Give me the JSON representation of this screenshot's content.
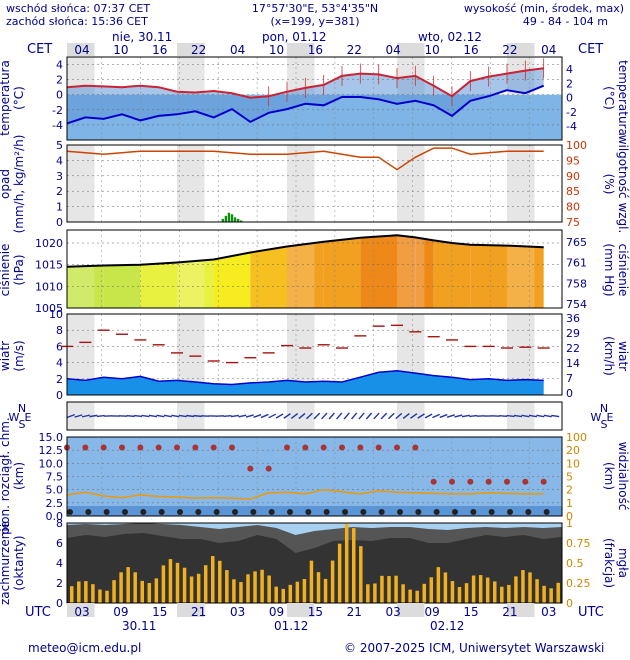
{
  "header": {
    "sunrise": "wschód słońca: 07:37 CET",
    "sunset": "zachód słońca: 15:36 CET",
    "coords": "17°57'30\"E, 53°4'35\"N",
    "grid": "(x=199,  y=381)",
    "alt_title": "wysokość (min, środek, max)",
    "alt_values": "49 - 84 - 104 m"
  },
  "footer": {
    "email": "meteo@icm.edu.pl",
    "copyright": "© 2007-2025 ICM, Uniwersytet Warszawski"
  },
  "time_axis": {
    "top_label": "CET",
    "bottom_label": "UTC",
    "cet_ticks": [
      "04",
      "10",
      "16",
      "22",
      "04",
      "10",
      "16",
      "22",
      "04",
      "10",
      "16",
      "22",
      "04"
    ],
    "utc_ticks": [
      "03",
      "09",
      "15",
      "21",
      "03",
      "09",
      "15",
      "21",
      "03",
      "09",
      "15",
      "21",
      "03"
    ],
    "days_top": [
      "nie, 30.11",
      "pon, 01.12",
      "wto, 02.12"
    ],
    "days_bottom": [
      "30.11",
      "01.12",
      "02.12"
    ]
  },
  "chart_data": [
    {
      "type": "line",
      "id": "temperature",
      "ylabel": "temperatura",
      "yunit": "(°C)",
      "ylim": [
        -6,
        5
      ],
      "yticks": [
        4,
        2,
        0,
        -2,
        -4
      ],
      "x_hours": [
        0,
        6,
        12,
        18,
        24,
        30,
        36,
        42,
        48,
        54,
        60,
        66,
        72,
        78,
        84,
        90,
        96,
        102,
        108,
        114,
        120,
        126,
        132,
        138,
        144,
        150,
        156
      ],
      "series": [
        {
          "values": [
            1.0,
            1.2,
            1.1,
            1.0,
            1.2,
            1.0,
            0.4,
            0.3,
            0.5,
            0.2,
            -0.4,
            -0.2,
            0.4,
            0.9,
            1.3,
            2.5,
            2.8,
            2.7,
            2.2,
            2.5,
            1.2,
            -0.2,
            1.8,
            2.4,
            2.8,
            3.2,
            3.5
          ]
        },
        {
          "values": [
            -3.8,
            -3.0,
            -3.2,
            -2.6,
            -3.4,
            -2.8,
            -2.6,
            -2.2,
            -3.0,
            -1.9,
            -3.6,
            -2.4,
            -1.9,
            -1.2,
            -1.4,
            -0.3,
            -0.3,
            -0.6,
            -1.2,
            -0.8,
            -1.4,
            -2.8,
            -0.8,
            -0.2,
            0.6,
            0.2,
            1.2
          ]
        }
      ]
    },
    {
      "type": "bar",
      "id": "precip_humidity",
      "ylabel": "opad",
      "yunit": "(mm/h, kg/m²/h)",
      "ylim": [
        0,
        5
      ],
      "yticks": [
        5,
        4,
        3,
        2,
        1,
        0
      ],
      "y2label": "wilgotność wzgl.",
      "y2unit": "(%)",
      "y2lim": [
        75,
        100
      ],
      "y2ticks": [
        100,
        95,
        90,
        85,
        80,
        75
      ],
      "x_hours": [
        51,
        52,
        53,
        54,
        55,
        56,
        57
      ],
      "values": [
        0.2,
        0.4,
        0.6,
        0.5,
        0.3,
        0.2,
        0.1
      ],
      "series": [
        {
          "x_hours": [
            0,
            12,
            24,
            36,
            48,
            60,
            72,
            84,
            96,
            102,
            108,
            114,
            120,
            126,
            132,
            144,
            156
          ],
          "values": [
            98,
            97,
            98,
            98,
            98,
            97,
            97,
            98,
            96,
            96,
            92,
            96,
            99,
            99,
            97,
            98,
            98
          ]
        }
      ]
    },
    {
      "type": "line",
      "id": "pressure",
      "ylabel": "ciśnienie",
      "yunit": "(hPa)",
      "ylim": [
        1005,
        1023
      ],
      "yticks": [
        1020,
        1015,
        1010,
        1005
      ],
      "y2label": "ciśnienie",
      "y2unit": "(mm Hg)",
      "y2ticks": [
        765,
        761,
        758,
        754
      ],
      "x_hours": [
        0,
        12,
        24,
        36,
        48,
        60,
        72,
        84,
        96,
        108,
        114,
        120,
        126,
        132,
        144,
        156
      ],
      "series": [
        {
          "values": [
            1014.5,
            1014.8,
            1015.0,
            1015.5,
            1016.2,
            1017.8,
            1019.2,
            1020.3,
            1021.2,
            1021.8,
            1021.3,
            1020.6,
            1020.0,
            1019.6,
            1019.4,
            1019.0
          ]
        }
      ]
    },
    {
      "type": "line",
      "id": "wind",
      "ylabel": "wiatr",
      "yunit": "(m/s)",
      "ylim": [
        0,
        10
      ],
      "yticks": [
        10,
        8,
        6,
        4,
        2,
        0
      ],
      "y2label": "wiatr",
      "y2unit": "(km/h)",
      "y2ticks": [
        36,
        29,
        22,
        14,
        7,
        0
      ],
      "x_hours": [
        0,
        6,
        12,
        18,
        24,
        30,
        36,
        42,
        48,
        54,
        60,
        66,
        72,
        78,
        84,
        90,
        96,
        102,
        108,
        114,
        120,
        126,
        132,
        138,
        144,
        150,
        156
      ],
      "series": [
        {
          "values": [
            2.0,
            1.8,
            2.2,
            2.0,
            2.3,
            1.7,
            1.8,
            1.6,
            1.4,
            1.3,
            1.5,
            1.6,
            1.8,
            1.6,
            1.7,
            1.6,
            2.2,
            2.8,
            3.0,
            2.7,
            2.4,
            2.2,
            1.9,
            2.0,
            1.8,
            1.9,
            1.8
          ]
        },
        {
          "values": [
            6.0,
            6.5,
            8.0,
            7.5,
            6.8,
            6.2,
            5.2,
            4.8,
            4.2,
            4.0,
            4.6,
            5.2,
            6.1,
            5.8,
            6.2,
            5.8,
            7.3,
            8.5,
            8.6,
            7.8,
            7.2,
            6.8,
            6.0,
            6.0,
            5.8,
            5.9,
            5.8
          ]
        }
      ]
    },
    {
      "type": "scatter",
      "id": "wind_direction",
      "compass": [
        "N",
        "S",
        "W",
        "E"
      ]
    },
    {
      "type": "scatter",
      "id": "cloud_base_visibility",
      "ylabel": "pion. rozciągł. chm.",
      "yunit": "(km)",
      "ylim": [
        0,
        15
      ],
      "yticks": [
        "15.0",
        "12.5",
        "10.0",
        "7.5",
        "5.0",
        "2.5",
        "0.0"
      ],
      "y2label": "widzialność",
      "y2unit": "(km)",
      "y2ticks": [
        100,
        20,
        10,
        5,
        2,
        1,
        0
      ],
      "x_hours": [
        0,
        6,
        12,
        18,
        24,
        30,
        36,
        42,
        48,
        54,
        60,
        66,
        72,
        78,
        84,
        90,
        96,
        102,
        108,
        114,
        120,
        126,
        132,
        138,
        144,
        150,
        156
      ],
      "series": [
        {
          "values": [
            4,
            4.5,
            3.8,
            3.5,
            4,
            3.7,
            3.6,
            3.4,
            3.5,
            3.4,
            3.2,
            4.4,
            4.5,
            4.2,
            5.0,
            4.6,
            4.2,
            4.8,
            4.5,
            4.4,
            4.3,
            4.2,
            4.2,
            4.4,
            4.3,
            4.2,
            4.2
          ]
        },
        {
          "values": [
            13,
            13,
            13,
            13,
            13,
            13,
            13,
            13,
            13,
            13,
            9,
            9,
            13,
            13,
            13,
            13,
            13,
            13,
            13,
            13,
            6.5,
            6.5,
            6.5,
            6.5,
            6.5,
            6.5,
            6.5
          ]
        }
      ]
    },
    {
      "type": "area",
      "id": "cloud_fog",
      "ylabel": "zachmurzenie",
      "yunit": "(oktanty)",
      "ylim": [
        0,
        8
      ],
      "yticks": [
        8,
        6,
        4,
        2,
        0
      ],
      "y2label": "mgła",
      "y2unit": "(frakcja)",
      "y2ticks": [
        "1",
        "0.75",
        "0.5",
        "0.25",
        "0"
      ],
      "series": [
        {
          "values": [
            7.8,
            7.9,
            7.8,
            7.9,
            8,
            7.9,
            7.8,
            7.6,
            7.4,
            7.6,
            7.8,
            7.5,
            6.8,
            7.2,
            7.4,
            7.6,
            7.5,
            7.6,
            7.6,
            7.4,
            7.3,
            7.5,
            7.6,
            7.5,
            7.6,
            7.5,
            7.6
          ]
        },
        {
          "values": [
            6.5,
            6.8,
            6.6,
            6.9,
            7,
            6.7,
            6.4,
            6.4,
            6,
            6.2,
            6.8,
            6.4,
            5,
            5.5,
            6.2,
            6.3,
            6.2,
            6.5,
            6.5,
            6,
            6,
            6.4,
            6.8,
            6.6,
            6.8,
            6.4,
            6.6
          ]
        },
        {
          "values": [
            0.28,
            0.3,
            0.42,
            0.45,
            0.5,
            0.55,
            0.65,
            0.6,
            0.55,
            0.5,
            0.42,
            0.35,
            0.3,
            0.6,
            0.9,
            1.0,
            0.45,
            0.35,
            0.3,
            0.35,
            0.45,
            0.4,
            0.35,
            0.4,
            0.42,
            0.4,
            0.35
          ]
        }
      ]
    }
  ]
}
